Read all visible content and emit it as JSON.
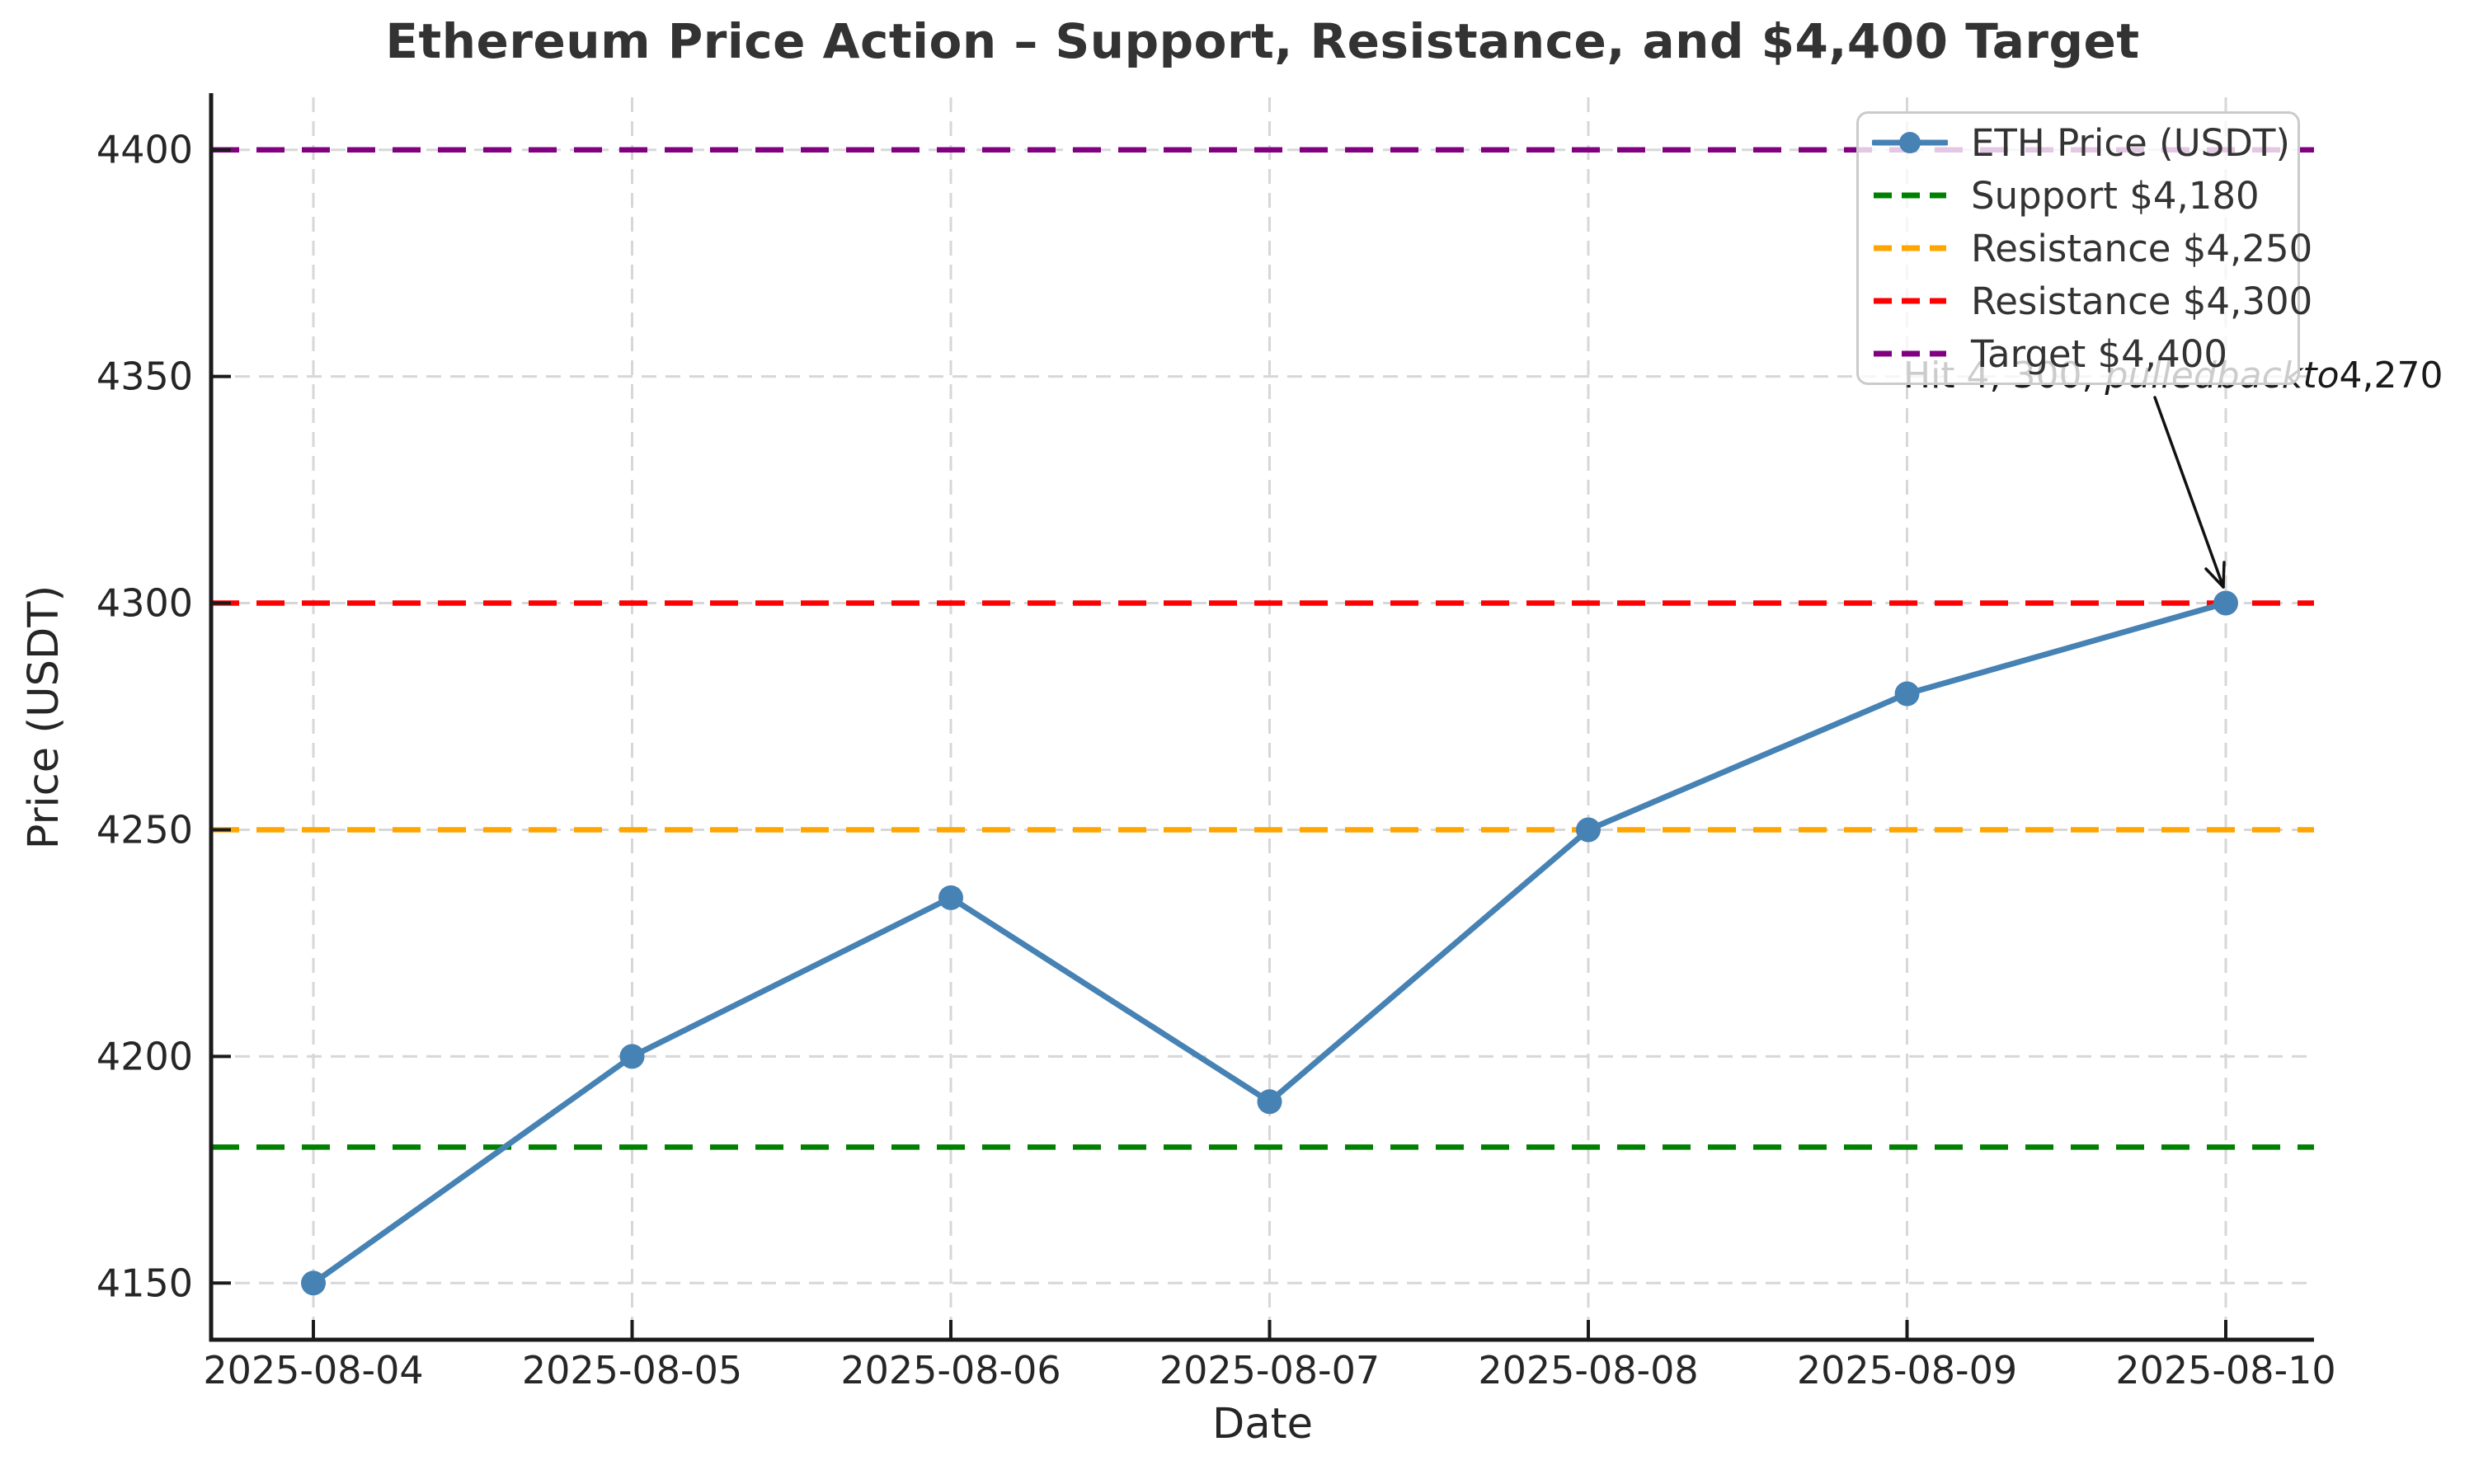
{
  "title": "Ethereum Price Action – Support, Resistance, and $4,400 Target",
  "chart_data": {
    "type": "line",
    "x": [
      "2025-08-04",
      "2025-08-05",
      "2025-08-06",
      "2025-08-07",
      "2025-08-08",
      "2025-08-09",
      "2025-08-10"
    ],
    "series": [
      {
        "name": "ETH Price (USDT)",
        "values": [
          4150,
          4200,
          4235,
          4190,
          4250,
          4280,
          4300
        ],
        "color": "#4682B4",
        "style": "solid",
        "marker": "circle"
      }
    ],
    "hlines": [
      {
        "label": "Support $4,180",
        "value": 4180,
        "color": "#008000",
        "style": "dashed"
      },
      {
        "label": "Resistance $4,250",
        "value": 4250,
        "color": "#FFA500",
        "style": "dashed"
      },
      {
        "label": "Resistance $4,300",
        "value": 4300,
        "color": "#FF0000",
        "style": "dashed"
      },
      {
        "label": "Target $4,400",
        "value": 4400,
        "color": "#800080",
        "style": "dashed"
      }
    ],
    "xlabel": "Date",
    "ylabel": "Price (USDT)",
    "yticks": [
      "4150",
      "4200",
      "4250",
      "4300",
      "4350",
      "4400"
    ],
    "ytick_values": [
      4150,
      4200,
      4250,
      4300,
      4350,
      4400
    ],
    "ylim": [
      4137.5,
      4412.5
    ],
    "grid": true,
    "legend_position": "upper right",
    "annotation": {
      "text_plain": "Hit $4,300, pulled back to $4,270",
      "rendered_prefix": "Hit 4, 300, ",
      "rendered_italic": "pulledbackto",
      "rendered_suffix": "4,270",
      "arrow_to": {
        "x": "2025-08-10",
        "y": 4300
      }
    }
  },
  "colors": {
    "grid": "#d7d7d7",
    "spine": "#1a1a1a",
    "title_text": "#333333",
    "tick_text": "#262626",
    "legend_border": "#cbcbcb",
    "annotation_arrow": "#111111"
  }
}
